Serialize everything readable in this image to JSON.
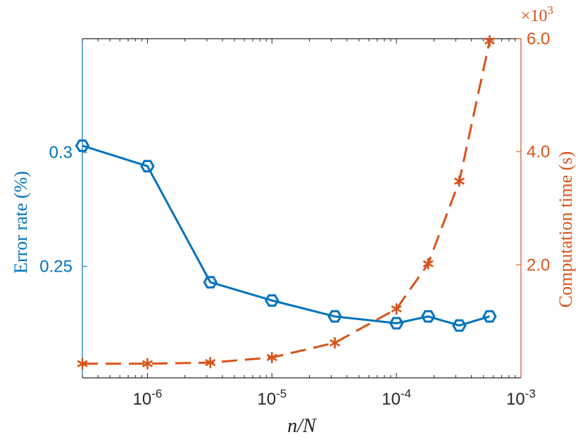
{
  "chart_data": {
    "type": "line",
    "x_scale": "log",
    "x_range": [
      3e-07,
      0.001
    ],
    "xlabel": "n/N",
    "x_ticks": [
      {
        "value": 1e-06,
        "base": "10",
        "exp": "-6"
      },
      {
        "value": 1e-05,
        "base": "10",
        "exp": "-5"
      },
      {
        "value": 0.0001,
        "base": "10",
        "exp": "-4"
      },
      {
        "value": 0.001,
        "base": "10",
        "exp": "-3"
      }
    ],
    "left_axis": {
      "label": "Error rate (%)",
      "range": [
        0.201,
        0.35
      ],
      "ticks": [
        {
          "value": 0.25,
          "label": "0.25"
        },
        {
          "value": 0.3,
          "label": "0.3"
        }
      ],
      "color": "#0072BD"
    },
    "right_axis": {
      "label": "Computation time (s)",
      "range": [
        0,
        6000
      ],
      "ticks": [
        {
          "value": 2000,
          "label": "2.0"
        },
        {
          "value": 4000,
          "label": "4.0"
        },
        {
          "value": 6000,
          "label": "6.0"
        }
      ],
      "multiplier_base": "×10",
      "multiplier_exp": "3",
      "color": "#D95319"
    },
    "series": [
      {
        "axis": "left",
        "style": "solid",
        "marker": "hexagon",
        "color": "#0072BD",
        "x": [
          3e-07,
          1e-06,
          3.2e-06,
          1e-05,
          3.2e-05,
          0.0001,
          0.00018,
          0.00032,
          0.00056
        ],
        "y": [
          0.303,
          0.294,
          0.243,
          0.235,
          0.228,
          0.225,
          0.228,
          0.224,
          0.228
        ]
      },
      {
        "axis": "right",
        "style": "dashed",
        "marker": "asterisk",
        "color": "#D95319",
        "x": [
          3e-07,
          1e-06,
          3.2e-06,
          1e-05,
          3.2e-05,
          0.0001,
          0.00018,
          0.00032,
          0.00056
        ],
        "y": [
          250,
          250,
          270,
          360,
          620,
          1220,
          2020,
          3480,
          5960
        ]
      }
    ],
    "grid": false,
    "legend": "none"
  }
}
